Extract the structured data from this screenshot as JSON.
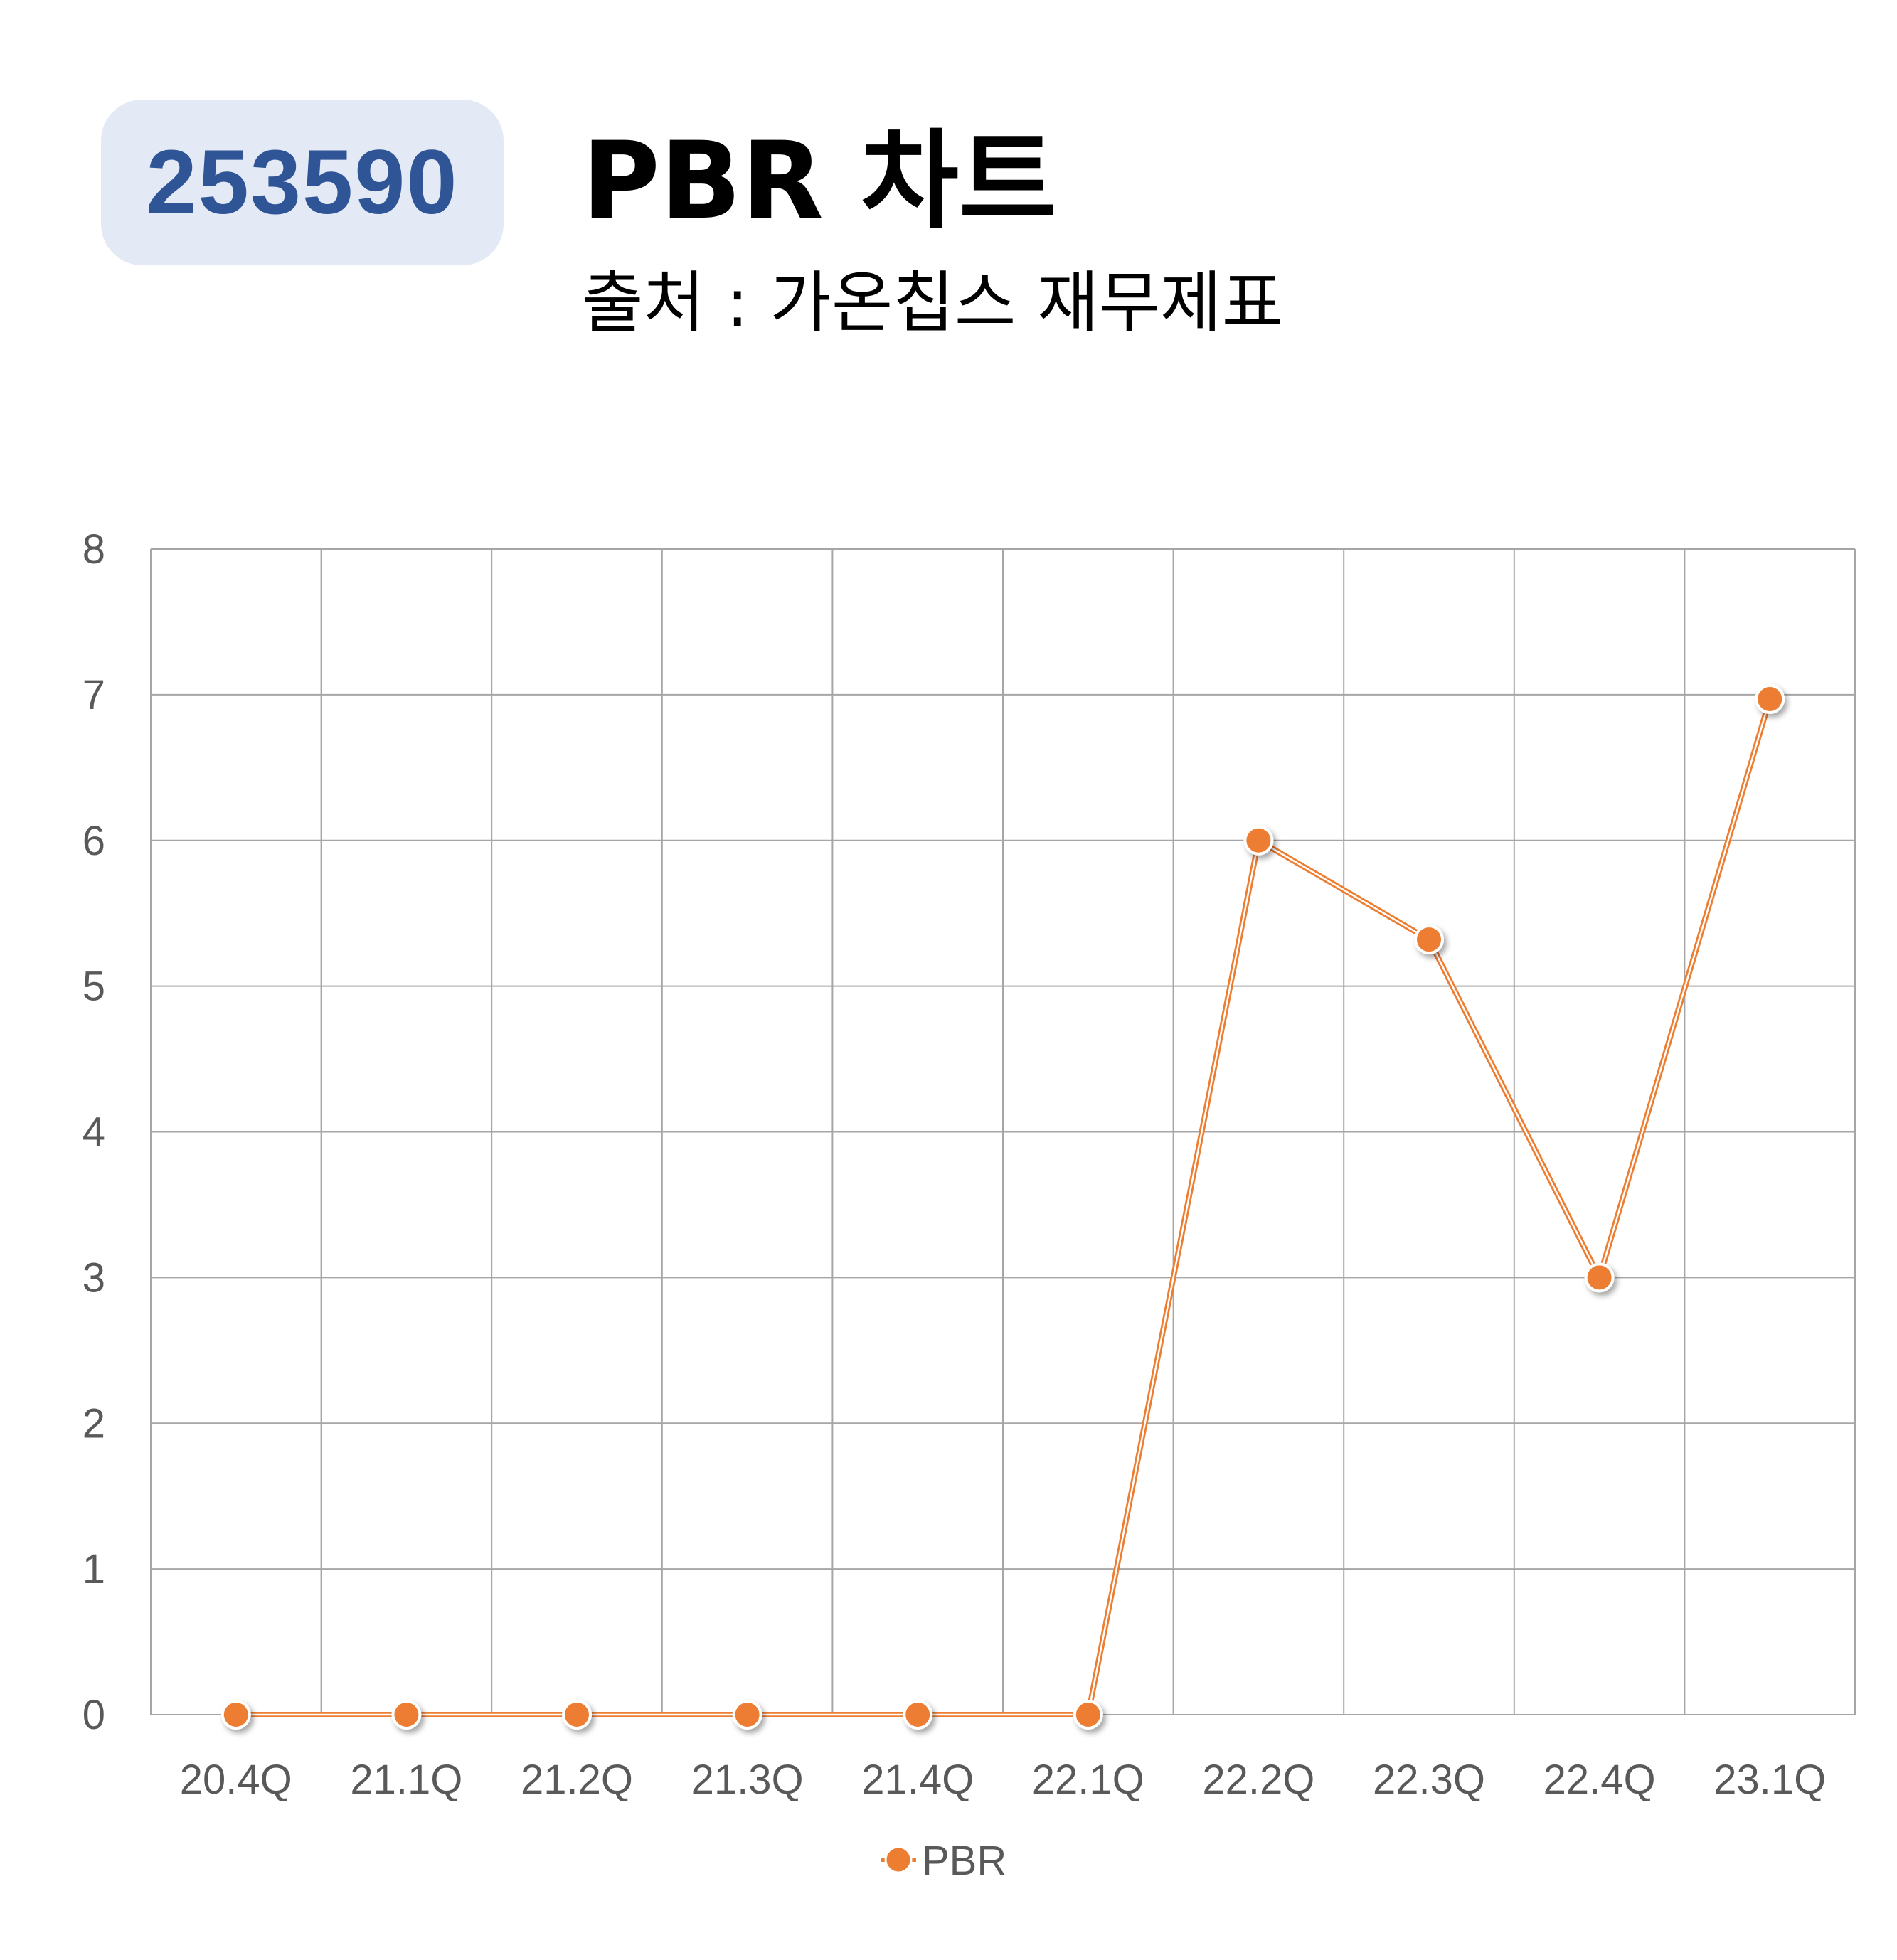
{
  "header": {
    "code": "253590",
    "title": "PBR 차트",
    "subtitle": "출처 : 가온칩스 재무제표"
  },
  "colors": {
    "badge_bg": "#e3e9f5",
    "badge_text": "#2f5597",
    "series": "#ed7d31",
    "grid": "#a6a6a6",
    "tick_text": "#595959"
  },
  "chart_data": {
    "type": "line",
    "categories": [
      "20.4Q",
      "21.1Q",
      "21.2Q",
      "21.3Q",
      "21.4Q",
      "22.1Q",
      "22.2Q",
      "22.3Q",
      "22.4Q",
      "23.1Q"
    ],
    "series": [
      {
        "name": "PBR",
        "values": [
          0,
          0,
          0,
          0,
          0,
          0,
          6.0,
          5.32,
          3.0,
          6.97
        ]
      }
    ],
    "yticks": [
      0,
      1,
      2,
      3,
      4,
      5,
      6,
      7,
      8
    ],
    "ylim": [
      0,
      8
    ],
    "grid": true,
    "legend": "bottom-center",
    "markers": true
  }
}
